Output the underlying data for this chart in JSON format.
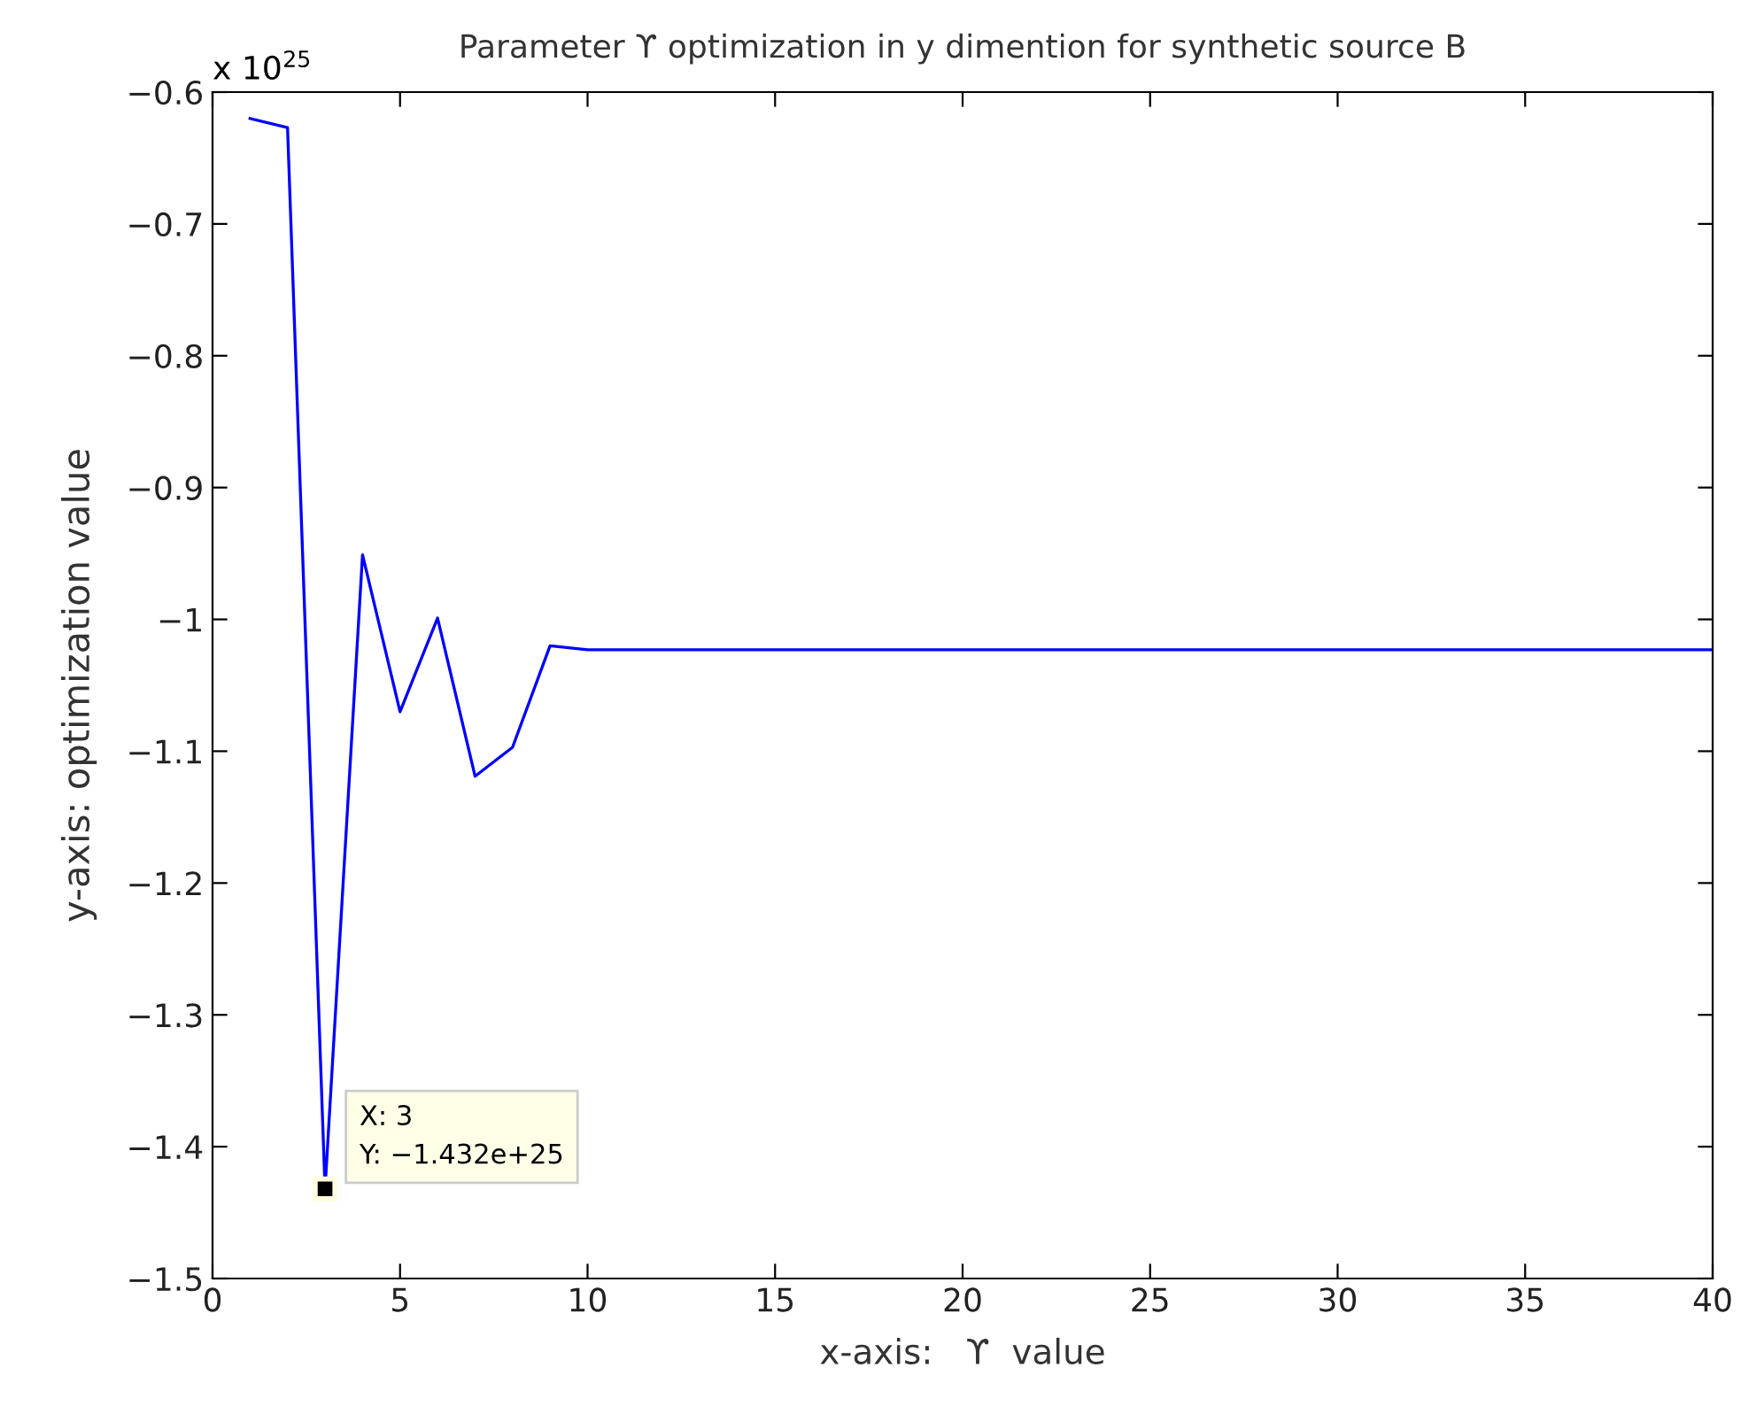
{
  "chart_data": {
    "type": "line",
    "title": "Parameter ϒ optimization in y dimention for synthetic source B",
    "xlabel": "x-axis:   ϒ  value",
    "ylabel": "y-axis: optimization value",
    "x": [
      1,
      2,
      3,
      4,
      5,
      6,
      7,
      8,
      9,
      10,
      11,
      12,
      13,
      14,
      15,
      16,
      17,
      18,
      19,
      20,
      21,
      22,
      23,
      24,
      25,
      26,
      27,
      28,
      29,
      30,
      31,
      32,
      33,
      34,
      35,
      36,
      37,
      38,
      39,
      40
    ],
    "series": [
      {
        "color": "#0000ff",
        "values": [
          -0.62,
          -0.627,
          -1.432,
          -0.951,
          -1.07,
          -0.999,
          -1.119,
          -1.097,
          -1.02,
          -1.023,
          -1.023,
          -1.023,
          -1.023,
          -1.023,
          -1.023,
          -1.023,
          -1.023,
          -1.023,
          -1.023,
          -1.023,
          -1.023,
          -1.023,
          -1.023,
          -1.023,
          -1.023,
          -1.023,
          -1.023,
          -1.023,
          -1.023,
          -1.023,
          -1.023,
          -1.023,
          -1.023,
          -1.023,
          -1.023,
          -1.023,
          -1.023,
          -1.023,
          -1.023,
          -1.023
        ]
      }
    ],
    "xlim": [
      0,
      40
    ],
    "xticks": [
      0,
      5,
      10,
      15,
      20,
      25,
      30,
      35,
      40
    ],
    "ylim": [
      -1.5,
      -0.6
    ],
    "yticks": [
      {
        "value": -1.5,
        "label": "−1.5"
      },
      {
        "value": -1.4,
        "label": "−1.4"
      },
      {
        "value": -1.3,
        "label": "−1.3"
      },
      {
        "value": -1.2,
        "label": "−1.2"
      },
      {
        "value": -1.1,
        "label": "−1.1"
      },
      {
        "value": -1.0,
        "label": "−1"
      },
      {
        "value": -0.9,
        "label": "−0.9"
      },
      {
        "value": -0.8,
        "label": "−0.8"
      },
      {
        "value": -0.7,
        "label": "−0.7"
      },
      {
        "value": -0.6,
        "label": "−0.6"
      }
    ],
    "annotations": [
      "x 10$^{25}$",
      {
        "text": "X: 3\nY: −1.432e+25",
        "x": 3,
        "y": -1.432
      }
    ],
    "grid": false,
    "legend": false,
    "marker": "none",
    "line_style": "solid"
  }
}
